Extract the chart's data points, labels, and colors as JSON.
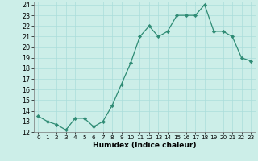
{
  "x": [
    0,
    1,
    2,
    3,
    4,
    5,
    6,
    7,
    8,
    9,
    10,
    11,
    12,
    13,
    14,
    15,
    16,
    17,
    18,
    19,
    20,
    21,
    22,
    23
  ],
  "y": [
    13.5,
    13.0,
    12.7,
    12.2,
    13.3,
    13.3,
    12.5,
    13.0,
    14.5,
    16.5,
    18.5,
    21.0,
    22.0,
    21.0,
    21.5,
    23.0,
    23.0,
    23.0,
    24.0,
    21.5,
    21.5,
    21.0,
    19.0,
    18.7
  ],
  "xlabel": "Humidex (Indice chaleur)",
  "xlim": [
    -0.5,
    23.5
  ],
  "ylim": [
    12,
    24.3
  ],
  "yticks": [
    12,
    13,
    14,
    15,
    16,
    17,
    18,
    19,
    20,
    21,
    22,
    23,
    24
  ],
  "xticks": [
    0,
    1,
    2,
    3,
    4,
    5,
    6,
    7,
    8,
    9,
    10,
    11,
    12,
    13,
    14,
    15,
    16,
    17,
    18,
    19,
    20,
    21,
    22,
    23
  ],
  "line_color": "#2e8b74",
  "marker_color": "#2e8b74",
  "bg_color": "#cceee8",
  "grid_color": "#aaddda",
  "label_fontsize": 6.5,
  "tick_fontsize": 5.8
}
